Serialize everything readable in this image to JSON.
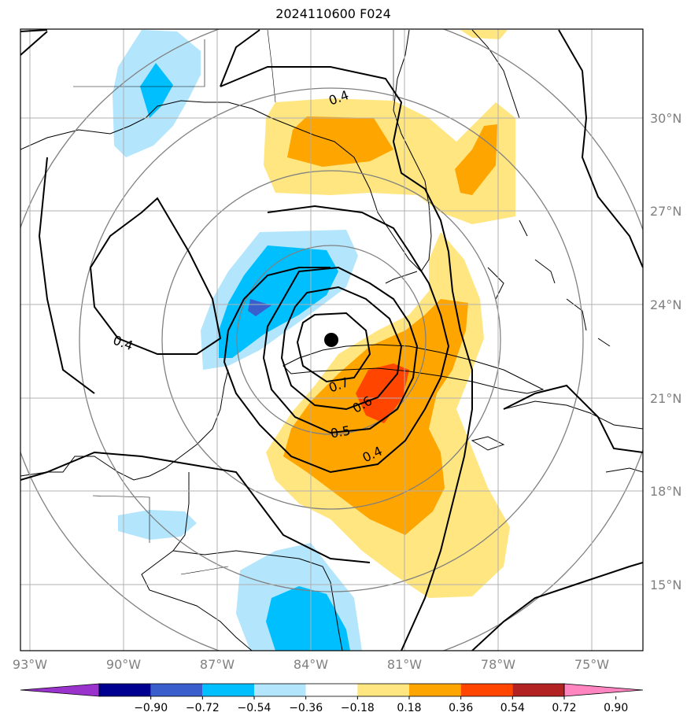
{
  "title": "2024110600 F024",
  "latitude_labels": [
    "30°N",
    "27°N",
    "24°N",
    "21°N",
    "18°N",
    "15°N"
  ],
  "longitude_labels": [
    "93°W",
    "90°W",
    "87°W",
    "84°W",
    "81°W",
    "78°W",
    "75°W"
  ],
  "contour_labels": [
    "0.4",
    "0.4",
    "0.7",
    "0.6",
    "0.5",
    "0.4"
  ],
  "colorbar": {
    "ticks": [
      "−0.90",
      "−0.72",
      "−0.54",
      "−0.36",
      "−0.18",
      "0.18",
      "0.36",
      "0.54",
      "0.72",
      "0.90"
    ],
    "colors": [
      "#9933cc",
      "#000090",
      "#3a5fcd",
      "#00bfff",
      "#b3e5fc",
      "#ffffff",
      "#ffe680",
      "#ffa500",
      "#ff4500",
      "#b22222",
      "#ff85c0"
    ]
  },
  "center_marker": "storm-center-dot"
}
